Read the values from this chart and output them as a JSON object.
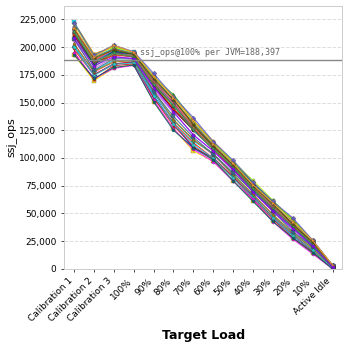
{
  "x_labels": [
    "Calibration 1",
    "Calibration 2",
    "Calibration 3",
    "100%",
    "90%",
    "80%",
    "70%",
    "60%",
    "50%",
    "40%",
    "30%",
    "20%",
    "10%",
    "Active Idle"
  ],
  "hline_value": 188397,
  "hline_label": "ssj_ops@100% per JVM=188,397",
  "ylabel": "ssj_ops",
  "xlabel": "Target Load",
  "ylim": [
    0,
    237500
  ],
  "yticks": [
    0,
    25000,
    50000,
    75000,
    100000,
    125000,
    150000,
    175000,
    200000,
    225000
  ],
  "background_color": "#ffffff",
  "plot_bg_color": "#ffffff",
  "series_colors": [
    "#00e5ff",
    "#ff69b4",
    "#0000cd",
    "#ff0000",
    "#00cc00",
    "#9900cc",
    "#ff8c00",
    "#009090",
    "#ff1493",
    "#660000",
    "#3333ff",
    "#00aa00",
    "#ffdd00",
    "#cc0022",
    "#00cccc",
    "#7700bb",
    "#ff5533",
    "#009988",
    "#aaff00",
    "#1166ff",
    "#ff3300",
    "#007744",
    "#cc66dd",
    "#aa7700",
    "#336688",
    "#dd7755",
    "#6655cc",
    "#33aa55",
    "#aa6655",
    "#22cccc",
    "#ff00ff",
    "#555500",
    "#ff9933",
    "#006666",
    "#8800ff",
    "#ffaaaa",
    "#aaffaa",
    "#aaaaff",
    "#ffaaff",
    "#aaffff"
  ],
  "num_series": 35,
  "seed": 12345,
  "bases": [
    208000,
    182000,
    191000,
    190000,
    163000,
    141000,
    121000,
    106000,
    88000,
    70000,
    52000,
    36000,
    20000,
    1500
  ],
  "spreads": [
    14000,
    12000,
    10000,
    6000,
    12000,
    16000,
    15000,
    9000,
    9000,
    9000,
    9000,
    9000,
    6000,
    1800
  ],
  "marker_size": 2.5,
  "line_width": 0.8,
  "grid_color": "#dddddd",
  "hline_color": "#888888",
  "hline_text_color": "#666666",
  "ylabel_fontsize": 8,
  "xlabel_fontsize": 9,
  "tick_fontsize": 6.5,
  "annot_fontsize": 6.0
}
